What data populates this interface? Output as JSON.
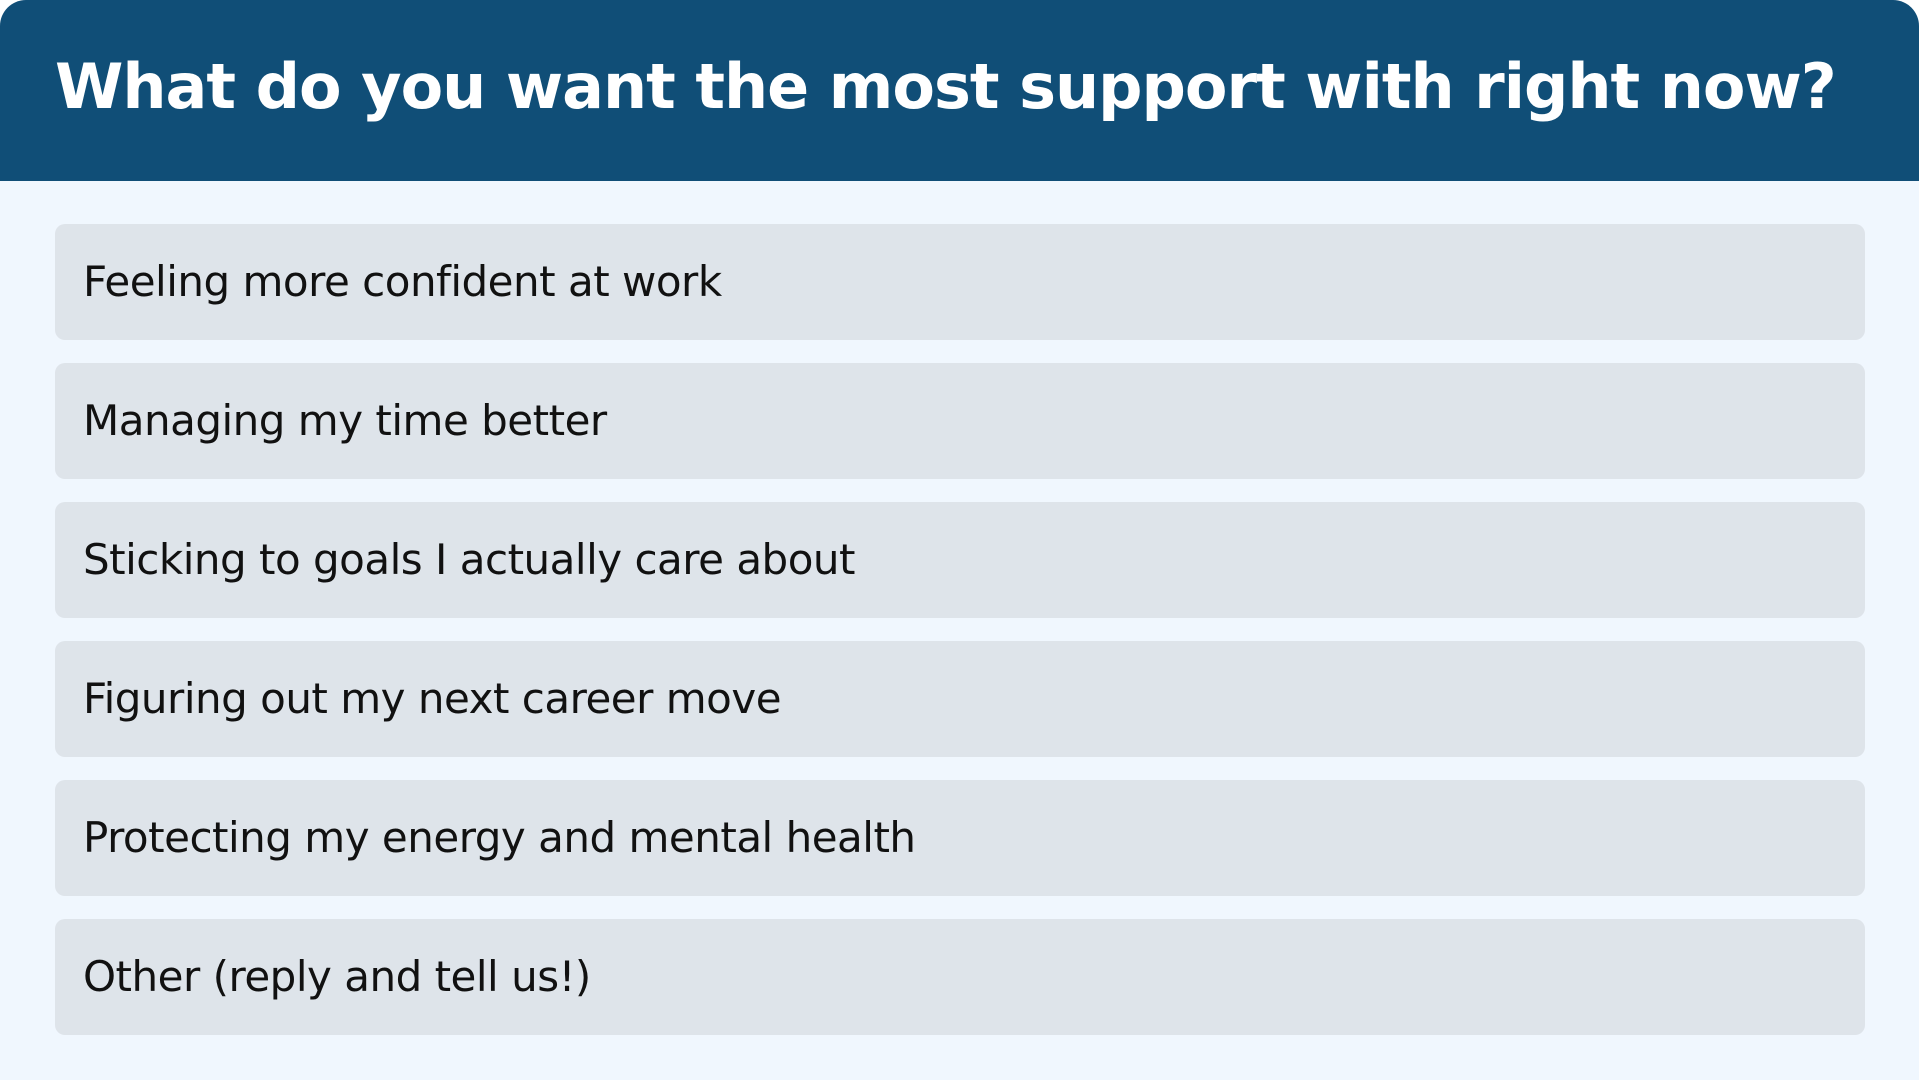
{
  "poll": {
    "question": "What do you want the most support with right now?",
    "options": [
      {
        "label": "Feeling more confident at work"
      },
      {
        "label": "Managing my time better"
      },
      {
        "label": "Sticking to goals I actually care about"
      },
      {
        "label": "Figuring out my next career move"
      },
      {
        "label": "Protecting my energy and mental health"
      },
      {
        "label": "Other (reply and tell us!)"
      }
    ]
  },
  "colors": {
    "header_background": "#104e77",
    "page_background": "#f0f7fe",
    "option_background": "#dee4ea",
    "title_text": "#ffffff",
    "option_text": "#111111"
  }
}
